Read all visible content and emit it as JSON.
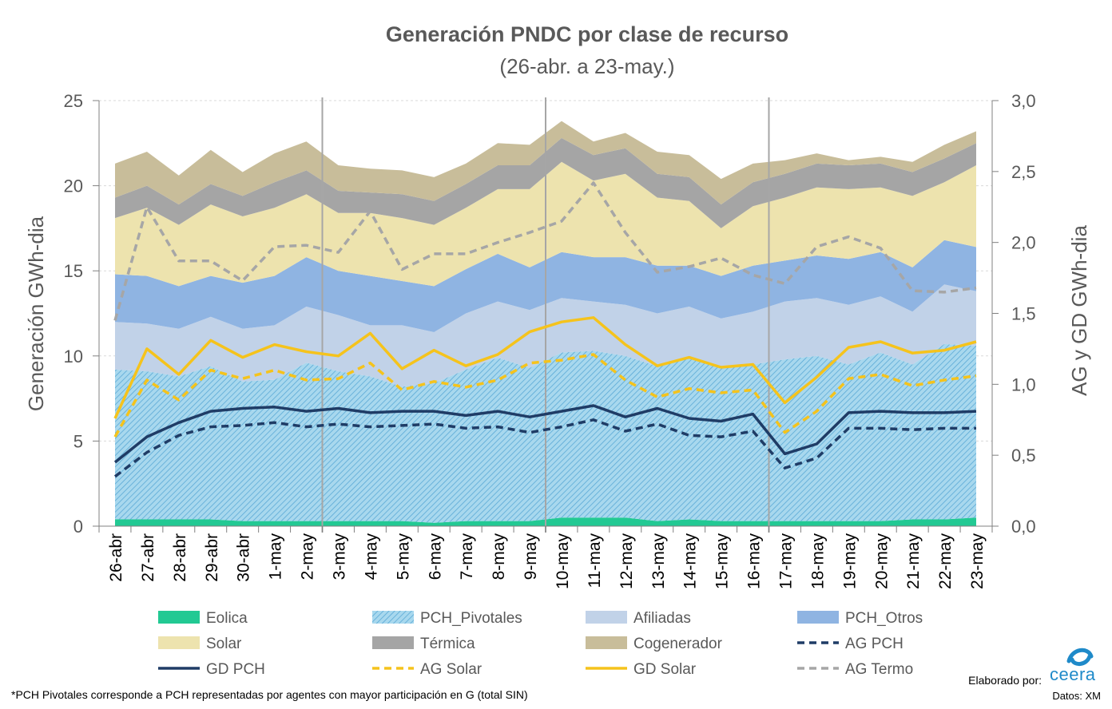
{
  "chart_data": {
    "type": "area",
    "title": "Generación PNDC por clase de recurso",
    "subtitle": "(26-abr. a 23-may.)",
    "ylabel": "Generación GWh-dia",
    "y2label": "AG y GD  GWh-dia",
    "ylim": [
      0,
      25
    ],
    "y2lim": [
      0,
      3.0
    ],
    "yticks": [
      "0",
      "5",
      "10",
      "15",
      "20",
      "25"
    ],
    "y2ticks": [
      "0,0",
      "0,5",
      "1,0",
      "1,5",
      "2,0",
      "2,5",
      "3,0"
    ],
    "grid": "horizontal-dashed",
    "legend": "bottom",
    "categories": [
      "26-abr",
      "27-abr",
      "28-abr",
      "29-abr",
      "30-abr",
      "1-may",
      "2-may",
      "3-may",
      "4-may",
      "5-may",
      "6-may",
      "7-may",
      "8-may",
      "9-may",
      "10-may",
      "11-may",
      "12-may",
      "13-may",
      "14-may",
      "15-may",
      "16-may",
      "17-may",
      "18-may",
      "19-may",
      "20-may",
      "21-may",
      "22-may",
      "23-may"
    ],
    "week_separators": [
      "2-may",
      "9-may",
      "16-may"
    ],
    "stacked_series": [
      {
        "name": "Eolica",
        "color": "#22c993",
        "values": [
          0.4,
          0.4,
          0.4,
          0.4,
          0.3,
          0.3,
          0.3,
          0.3,
          0.3,
          0.3,
          0.2,
          0.3,
          0.3,
          0.3,
          0.5,
          0.5,
          0.5,
          0.3,
          0.4,
          0.3,
          0.3,
          0.3,
          0.3,
          0.3,
          0.3,
          0.4,
          0.4,
          0.5
        ]
      },
      {
        "name": "PCH_Pivotales",
        "color": "#9dd3ea",
        "values": [
          8.8,
          8.7,
          8.4,
          9.0,
          8.2,
          8.3,
          9.3,
          8.8,
          8.5,
          7.9,
          8.2,
          8.9,
          9.6,
          9.0,
          9.7,
          9.8,
          9.5,
          9.1,
          9.5,
          9.1,
          9.2,
          9.5,
          9.7,
          9.2,
          9.9,
          9.1,
          10.3,
          10.1
        ]
      },
      {
        "name": "Afiliadas",
        "color": "#c1d2e8",
        "values": [
          2.8,
          2.8,
          2.8,
          2.9,
          3.1,
          3.2,
          3.3,
          3.3,
          3.0,
          3.6,
          3.0,
          3.3,
          3.3,
          3.4,
          3.2,
          2.9,
          3.0,
          3.1,
          3.0,
          2.8,
          3.1,
          3.4,
          3.4,
          3.5,
          3.3,
          3.1,
          3.5,
          3.2
        ]
      },
      {
        "name": "PCH_Otros",
        "color": "#8fb4e2",
        "values": [
          2.8,
          2.8,
          2.5,
          2.4,
          2.7,
          2.9,
          2.9,
          2.6,
          2.9,
          2.6,
          2.7,
          2.6,
          2.8,
          2.5,
          2.7,
          2.6,
          2.8,
          2.8,
          2.4,
          2.5,
          2.7,
          2.4,
          2.5,
          2.7,
          2.6,
          2.6,
          2.6,
          2.6
        ]
      },
      {
        "name": "Solar",
        "color": "#ede3ae",
        "values": [
          3.3,
          4.0,
          3.6,
          4.2,
          3.9,
          4.0,
          3.7,
          3.4,
          3.7,
          3.7,
          3.6,
          3.6,
          3.8,
          4.6,
          5.3,
          4.5,
          4.9,
          4.0,
          3.8,
          2.8,
          3.5,
          3.7,
          4.0,
          4.1,
          3.8,
          4.2,
          3.4,
          4.8
        ]
      },
      {
        "name": "Térmica",
        "color": "#a5a5a5",
        "values": [
          1.2,
          1.3,
          1.2,
          1.2,
          1.2,
          1.5,
          1.4,
          1.3,
          1.2,
          1.4,
          1.4,
          1.4,
          1.4,
          1.4,
          1.4,
          1.5,
          1.5,
          1.4,
          1.4,
          1.4,
          1.4,
          1.4,
          1.4,
          1.4,
          1.4,
          1.4,
          1.4,
          1.3
        ]
      },
      {
        "name": "Cogenerador",
        "color": "#c8bd9a",
        "values": [
          2.0,
          2.0,
          1.7,
          2.0,
          1.4,
          1.7,
          1.7,
          1.5,
          1.4,
          1.4,
          1.4,
          1.2,
          1.3,
          1.2,
          1.0,
          0.8,
          0.9,
          1.3,
          1.3,
          1.5,
          1.1,
          0.8,
          0.6,
          0.3,
          0.4,
          0.6,
          0.8,
          0.7
        ]
      }
    ],
    "line_series": [
      {
        "name": "AG PCH",
        "color": "#1f3c66",
        "dash": true,
        "values": [
          0.35,
          0.52,
          0.64,
          0.7,
          0.71,
          0.73,
          0.7,
          0.72,
          0.7,
          0.71,
          0.72,
          0.69,
          0.7,
          0.66,
          0.7,
          0.75,
          0.67,
          0.72,
          0.64,
          0.63,
          0.67,
          0.41,
          0.48,
          0.69,
          0.69,
          0.68,
          0.69,
          0.69
        ]
      },
      {
        "name": "GD PCH",
        "color": "#1f3c66",
        "dash": false,
        "values": [
          0.45,
          0.63,
          0.73,
          0.81,
          0.83,
          0.84,
          0.81,
          0.83,
          0.8,
          0.81,
          0.81,
          0.78,
          0.81,
          0.77,
          0.81,
          0.85,
          0.77,
          0.83,
          0.76,
          0.74,
          0.79,
          0.51,
          0.58,
          0.8,
          0.81,
          0.8,
          0.8,
          0.81
        ]
      },
      {
        "name": "AG Solar",
        "color": "#f5c31c",
        "dash": true,
        "values": [
          0.63,
          1.03,
          0.89,
          1.1,
          1.04,
          1.1,
          1.03,
          1.04,
          1.15,
          0.96,
          1.02,
          0.98,
          1.03,
          1.15,
          1.17,
          1.21,
          1.03,
          0.91,
          0.97,
          0.94,
          0.96,
          0.66,
          0.81,
          1.04,
          1.07,
          0.99,
          1.03,
          1.06
        ]
      },
      {
        "name": "GD Solar",
        "color": "#f5c31c",
        "dash": false,
        "values": [
          0.76,
          1.25,
          1.07,
          1.31,
          1.19,
          1.28,
          1.23,
          1.2,
          1.36,
          1.11,
          1.24,
          1.13,
          1.21,
          1.37,
          1.44,
          1.47,
          1.28,
          1.13,
          1.19,
          1.12,
          1.14,
          0.87,
          1.05,
          1.26,
          1.3,
          1.22,
          1.24,
          1.3
        ]
      },
      {
        "name": "AG Termo",
        "color": "#a6a6a6",
        "dash": true,
        "values": [
          1.45,
          2.25,
          1.87,
          1.87,
          1.73,
          1.97,
          1.98,
          1.93,
          2.22,
          1.81,
          1.92,
          1.92,
          2.0,
          2.07,
          2.15,
          2.42,
          2.07,
          1.79,
          1.83,
          1.89,
          1.77,
          1.71,
          1.97,
          2.04,
          1.96,
          1.66,
          1.65,
          1.68
        ]
      }
    ]
  },
  "footer": {
    "note": "*PCH Pivotales corresponde a PCH representadas por agentes con mayor participación en G (total SIN)",
    "credit": "Elaborado por:",
    "logo_text": "ceera",
    "source": "Datos: XM"
  }
}
